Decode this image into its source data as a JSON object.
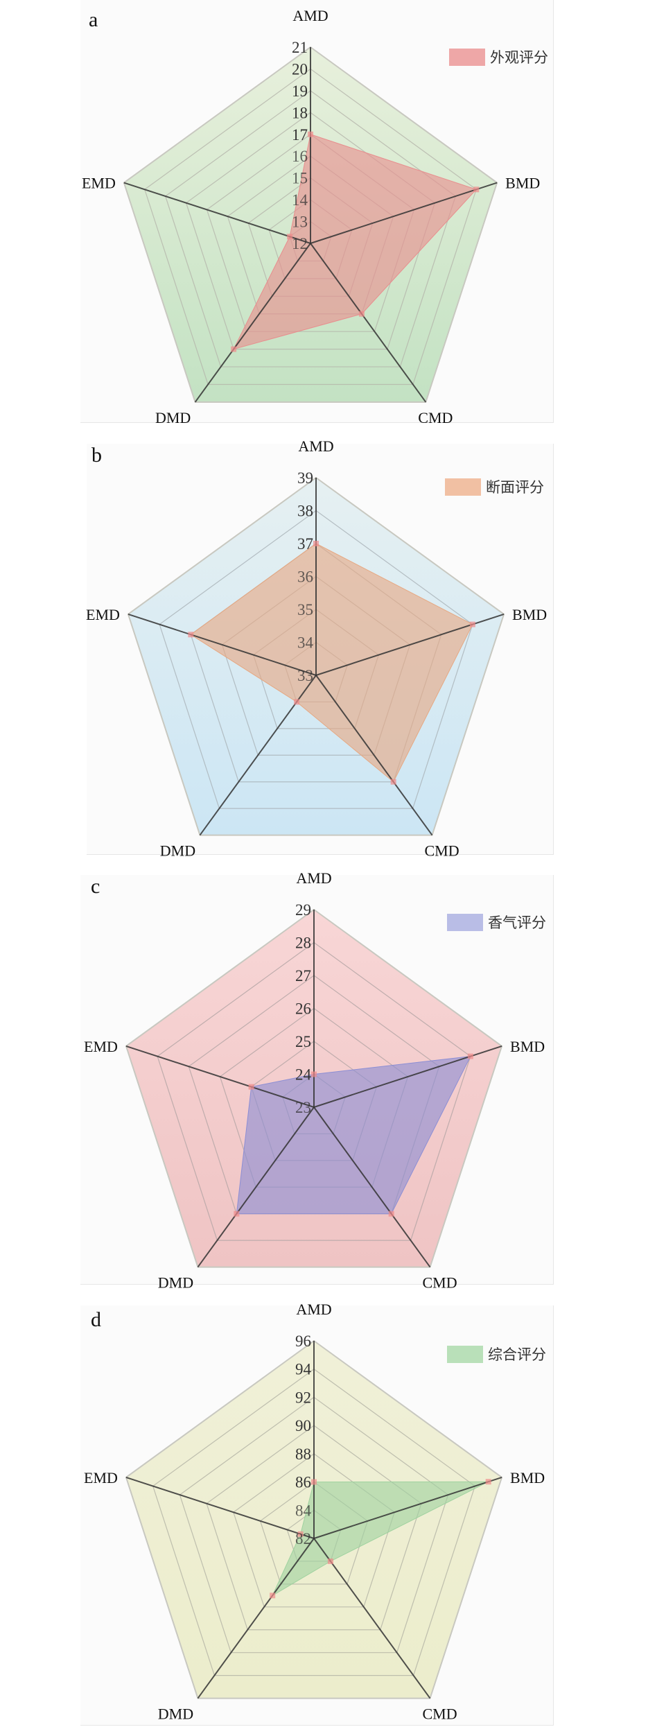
{
  "axes": [
    "AMD",
    "BMD",
    "CMD",
    "DMD",
    "EMD"
  ],
  "chart_data": [
    {
      "type": "radar",
      "panel": "a",
      "legend": "外观评分",
      "axes": [
        "AMD",
        "BMD",
        "CMD",
        "DMD",
        "EMD"
      ],
      "values": [
        17,
        20,
        16,
        18,
        13
      ],
      "rlim": [
        12,
        21
      ],
      "ticks": [
        12,
        13,
        14,
        15,
        16,
        17,
        18,
        19,
        20,
        21
      ],
      "legend_position": "top-right",
      "colors": {
        "bg_top": "#e8f0dc",
        "bg_bottom": "#c3e2c3",
        "fill": "#e88e8e",
        "grid": "#b4b4aa"
      }
    },
    {
      "type": "radar",
      "panel": "b",
      "legend": "断面评分",
      "axes": [
        "AMD",
        "BMD",
        "CMD",
        "DMD",
        "EMD"
      ],
      "values": [
        37,
        38,
        37,
        34,
        37
      ],
      "rlim": [
        33,
        39
      ],
      "ticks": [
        33,
        34,
        35,
        36,
        37,
        38,
        39
      ],
      "legend_position": "top-right",
      "colors": {
        "bg_top": "#e6f0f2",
        "bg_bottom": "#cce6f4",
        "fill": "#e6a882",
        "grid": "#a9b2b6"
      }
    },
    {
      "type": "radar",
      "panel": "c",
      "legend": "香气评分",
      "axes": [
        "AMD",
        "BMD",
        "CMD",
        "DMD",
        "EMD"
      ],
      "values": [
        24,
        28,
        27,
        27,
        25
      ],
      "rlim": [
        23,
        29
      ],
      "ticks": [
        23,
        24,
        25,
        26,
        27,
        28,
        29
      ],
      "legend_position": "top-right",
      "colors": {
        "bg_top": "#f8d6d6",
        "bg_bottom": "#efc4c4",
        "fill": "#8c8ed4",
        "grid": "#b2a4a4"
      }
    },
    {
      "type": "radar",
      "panel": "d",
      "legend": "综合评分",
      "axes": [
        "AMD",
        "BMD",
        "CMD",
        "DMD",
        "EMD"
      ],
      "values": [
        86,
        95,
        84,
        87,
        83
      ],
      "rlim": [
        82,
        96
      ],
      "ticks": [
        82,
        84,
        86,
        88,
        90,
        92,
        94,
        96
      ],
      "legend_position": "top-right",
      "colors": {
        "bg_top": "#f0f0d8",
        "bg_bottom": "#ecedcc",
        "fill": "#9fd29f",
        "grid": "#b2b2a4"
      }
    }
  ]
}
